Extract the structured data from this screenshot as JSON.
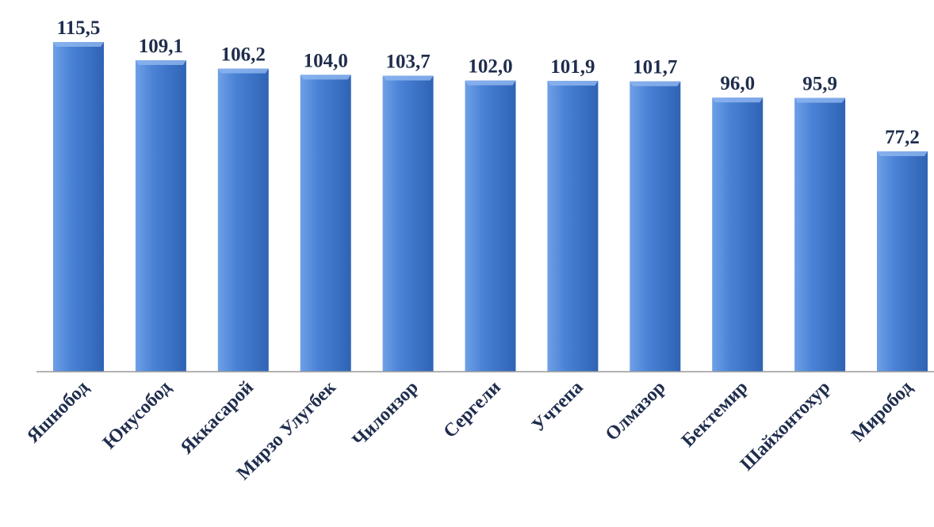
{
  "chart_data": {
    "type": "bar",
    "categories": [
      "Яшнобод",
      "Юнусобод",
      "Яккасарой",
      "Мирзо Улугбек",
      "Чилонзор",
      "Сергели",
      "Учтепа",
      "Олмазор",
      "Бектемир",
      "Шайхонтохур",
      "Миробод"
    ],
    "values": [
      115.5,
      109.1,
      106.2,
      104.0,
      103.7,
      102.0,
      101.9,
      101.7,
      96.0,
      95.9,
      77.2
    ],
    "value_labels": [
      "115,5",
      "109,1",
      "106,2",
      "104,0",
      "103,7",
      "102,0",
      "101,9",
      "101,7",
      "96,0",
      "95,9",
      "77,2"
    ],
    "title": "",
    "xlabel": "",
    "ylabel": "",
    "ylim": [
      0,
      115.5
    ],
    "grid": false,
    "legend": "none",
    "colors": {
      "bar_light": "#6fa0e6",
      "bar_mid": "#4a82d6",
      "bar_dark": "#2f63b4",
      "bar_cap": "#8cb4ef",
      "label": "#1f2d4d",
      "axis": "#9a9a9a"
    }
  }
}
